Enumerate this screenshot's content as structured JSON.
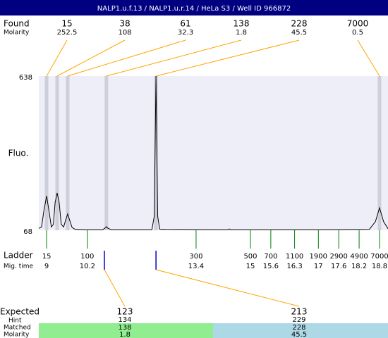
{
  "chart_data": {
    "type": "electropherogram",
    "title": "NALP1.u.f.13 / NALP1.u.r.14 / HeLa S3 / Well ID 966872",
    "y_label": "Fluo.",
    "ylim": [
      68,
      638
    ],
    "yticks": [
      68,
      638
    ],
    "xlim": [
      8.77,
      19.05
    ],
    "colors": {
      "header": "#000080",
      "plot": "#eeeef8",
      "band": "#cfcfdc",
      "leader": "#ffa500",
      "ladder": "#008000",
      "expected": "#0000cc",
      "trace": "#000000"
    },
    "found": {
      "label": "Found",
      "molarity_label": "Molarity",
      "peaks": [
        {
          "size": 15,
          "molarity": 252.5,
          "time": 9.0
        },
        {
          "size": 38,
          "molarity": 108,
          "time": 9.31
        },
        {
          "size": 61,
          "molarity": 32.3,
          "time": 9.62
        },
        {
          "size": 138,
          "molarity": 1.8,
          "time": 10.76
        },
        {
          "size": 228,
          "molarity": 45.5,
          "time": 12.22
        },
        {
          "size": 7000,
          "molarity": 0.5,
          "time": 18.8
        }
      ]
    },
    "ladder": {
      "label": "Ladder",
      "time_label": "Mig. time",
      "sizes": [
        15,
        100,
        300,
        500,
        700,
        1100,
        1900,
        2900,
        4900,
        7000
      ],
      "times": [
        9,
        10.2,
        13.4,
        15,
        15.6,
        16.3,
        17,
        17.6,
        18.2,
        18.8
      ]
    },
    "expected": {
      "label": "Expected",
      "hint_label": "Hint",
      "matched_label": "Matched",
      "molarity_label": "Molarity",
      "peaks": [
        {
          "size": 123,
          "hint": 134,
          "matched": 138,
          "molarity": 1.8,
          "time": 10.7,
          "color": "#90ee90"
        },
        {
          "size": 213,
          "hint": 229,
          "matched": 228,
          "molarity": 45.5,
          "time": 12.22,
          "color": "#add8e6"
        }
      ]
    },
    "trace": {
      "time": [
        8.77,
        8.85,
        8.92,
        9.0,
        9.07,
        9.14,
        9.2,
        9.25,
        9.31,
        9.37,
        9.43,
        9.5,
        9.56,
        9.62,
        9.68,
        9.75,
        9.85,
        10.2,
        10.65,
        10.72,
        10.76,
        10.8,
        10.9,
        12.1,
        12.17,
        12.22,
        12.27,
        12.33,
        12.5,
        14.0,
        14.35,
        14.38,
        14.42,
        17.0,
        18.5,
        18.68,
        18.8,
        18.92,
        19.05
      ],
      "fluo": [
        75,
        80,
        140,
        195,
        140,
        80,
        90,
        170,
        206,
        170,
        90,
        80,
        105,
        128,
        105,
        78,
        71,
        70,
        70,
        76,
        81,
        76,
        70,
        70,
        120,
        638,
        120,
        72,
        71,
        70,
        70,
        73,
        70,
        70,
        71,
        100,
        151,
        100,
        74
      ]
    }
  }
}
